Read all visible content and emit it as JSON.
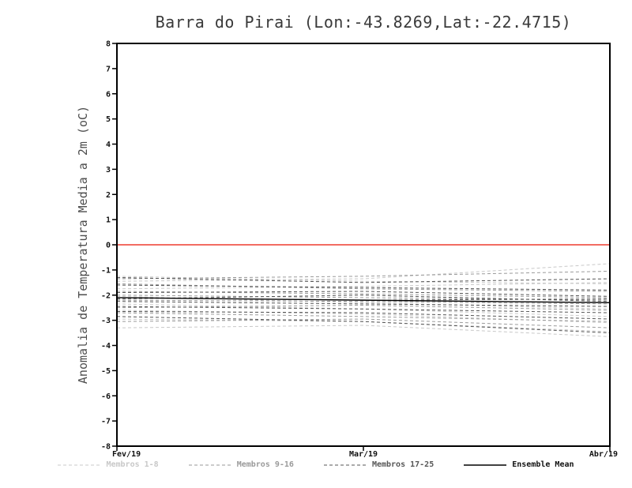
{
  "title": "Barra do Pirai (Lon:-43.8269,Lat:-22.4715)",
  "ylabel": "Anomalia de Temperatura Media a 2m (oC)",
  "chart_data": {
    "type": "line",
    "title": "Barra do Pirai (Lon:-43.8269,Lat:-22.4715)",
    "xlabel": "",
    "ylabel": "Anomalia de Temperatura Media a 2m (oC)",
    "x_labels": [
      "Fev/19",
      "Mar/19",
      "Abr/19"
    ],
    "ylim": [
      -8,
      8
    ],
    "y_tick_step": 1,
    "grid": false,
    "legend_position": "bottom",
    "frame_color": "#000000",
    "zero_line": {
      "value": 0,
      "color": "#ee3b2e"
    },
    "groups": [
      {
        "label": "Membros 1-8",
        "color": "#c8c8c8",
        "dash": "4,3",
        "width": 1
      },
      {
        "label": "Membros 9-16",
        "color": "#9a9a9a",
        "dash": "4,3",
        "width": 1
      },
      {
        "label": "Membros 17-25",
        "color": "#555555",
        "dash": "4,3",
        "width": 1
      },
      {
        "label": "Ensemble Mean",
        "color": "#000000",
        "dash": "",
        "width": 1.4
      }
    ],
    "series": [
      {
        "name": "Membro 1",
        "group": 0,
        "values": [
          -1.45,
          -1.35,
          -0.75
        ]
      },
      {
        "name": "Membro 2",
        "group": 0,
        "values": [
          -1.25,
          -1.45,
          -1.55
        ]
      },
      {
        "name": "Membro 3",
        "group": 0,
        "values": [
          -1.75,
          -1.65,
          -1.5
        ]
      },
      {
        "name": "Membro 4",
        "group": 0,
        "values": [
          -2.05,
          -2.3,
          -2.55
        ]
      },
      {
        "name": "Membro 5",
        "group": 0,
        "values": [
          -2.35,
          -2.55,
          -2.85
        ]
      },
      {
        "name": "Membro 6",
        "group": 0,
        "values": [
          -2.6,
          -2.75,
          -3.1
        ]
      },
      {
        "name": "Membro 7",
        "group": 0,
        "values": [
          -2.95,
          -3.05,
          -3.45
        ]
      },
      {
        "name": "Membro 8",
        "group": 0,
        "values": [
          -3.3,
          -3.2,
          -3.65
        ]
      },
      {
        "name": "Membro 9",
        "group": 1,
        "values": [
          -1.35,
          -1.25,
          -1.05
        ]
      },
      {
        "name": "Membro 10",
        "group": 1,
        "values": [
          -1.55,
          -1.75,
          -1.85
        ]
      },
      {
        "name": "Membro 11",
        "group": 1,
        "values": [
          -1.85,
          -1.95,
          -2.1
        ]
      },
      {
        "name": "Membro 12",
        "group": 1,
        "values": [
          -2.0,
          -2.1,
          -2.2
        ]
      },
      {
        "name": "Membro 13",
        "group": 1,
        "values": [
          -2.2,
          -2.25,
          -2.35
        ]
      },
      {
        "name": "Membro 14",
        "group": 1,
        "values": [
          -2.5,
          -2.4,
          -2.6
        ]
      },
      {
        "name": "Membro 15",
        "group": 1,
        "values": [
          -2.7,
          -2.85,
          -3.05
        ]
      },
      {
        "name": "Membro 16",
        "group": 1,
        "values": [
          -3.05,
          -2.95,
          -3.3
        ]
      },
      {
        "name": "Membro 17",
        "group": 2,
        "values": [
          -1.3,
          -1.5,
          -1.35
        ]
      },
      {
        "name": "Membro 18",
        "group": 2,
        "values": [
          -1.6,
          -1.7,
          -1.8
        ]
      },
      {
        "name": "Membro 19",
        "group": 2,
        "values": [
          -1.9,
          -1.85,
          -2.05
        ]
      },
      {
        "name": "Membro 20",
        "group": 2,
        "values": [
          -2.1,
          -2.2,
          -2.15
        ]
      },
      {
        "name": "Membro 21",
        "group": 2,
        "values": [
          -2.25,
          -2.35,
          -2.45
        ]
      },
      {
        "name": "Membro 22",
        "group": 2,
        "values": [
          -2.45,
          -2.55,
          -2.7
        ]
      },
      {
        "name": "Membro 23",
        "group": 2,
        "values": [
          -2.65,
          -2.7,
          -2.95
        ]
      },
      {
        "name": "Membro 24",
        "group": 2,
        "values": [
          -2.85,
          -3.05,
          -3.5
        ]
      },
      {
        "name": "Membro 25",
        "group": 2,
        "values": [
          -2.15,
          -2.0,
          -2.25
        ]
      },
      {
        "name": "Ensemble Mean",
        "group": 3,
        "values": [
          -2.1,
          -2.2,
          -2.3
        ]
      }
    ]
  }
}
